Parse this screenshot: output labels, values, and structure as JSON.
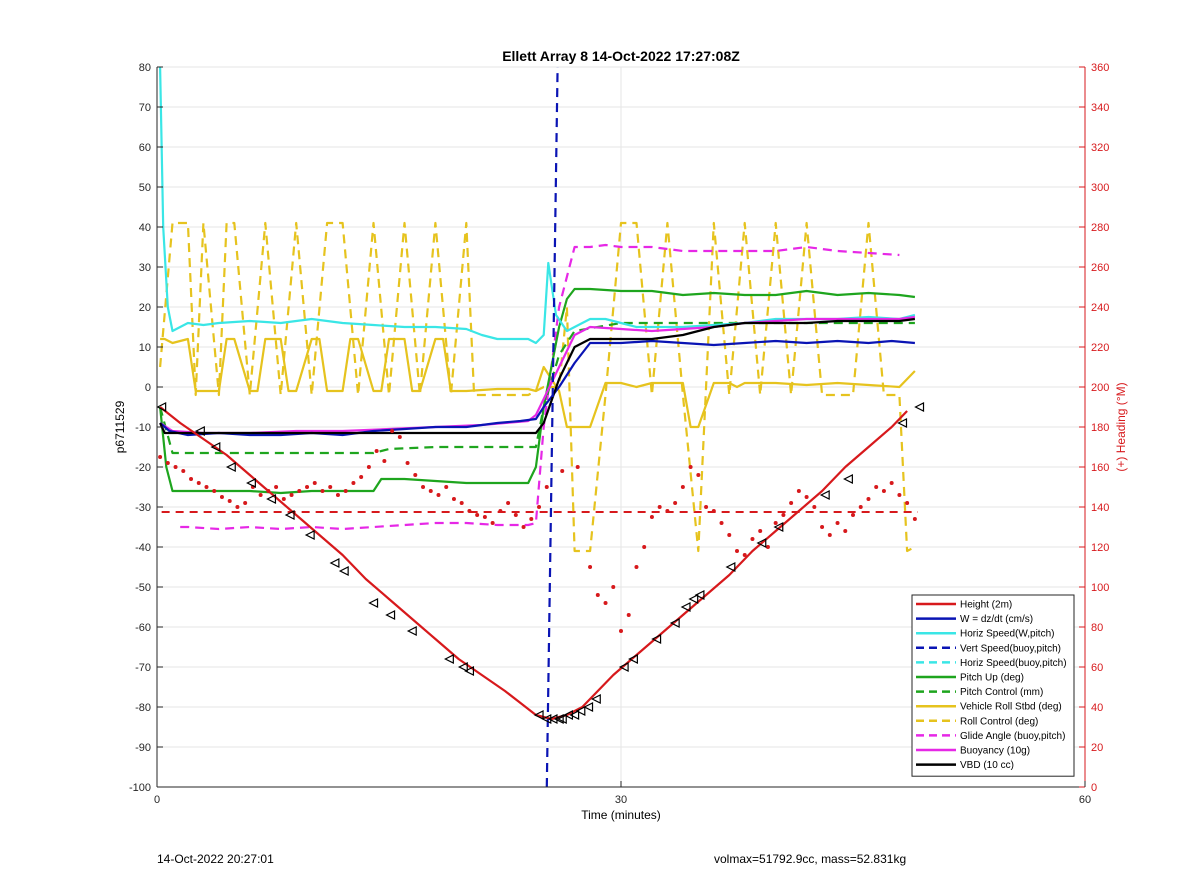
{
  "chart_data": {
    "type": "line",
    "title": "Ellett Array 8 14-Oct-2022 17:27:08Z",
    "xlabel": "Time (minutes)",
    "ylabel": "p6711529",
    "y2label": "(+) Heading (°M)",
    "xlim": [
      0,
      60
    ],
    "ylim": [
      -100,
      80
    ],
    "y2lim": [
      0,
      360
    ],
    "xticks": [
      0,
      30,
      60
    ],
    "yticks": [
      -100,
      -90,
      -80,
      -70,
      -60,
      -50,
      -40,
      -30,
      -20,
      -10,
      0,
      10,
      20,
      30,
      40,
      50,
      60,
      70,
      80
    ],
    "y2ticks": [
      0,
      20,
      40,
      60,
      80,
      100,
      120,
      140,
      160,
      180,
      200,
      220,
      240,
      260,
      280,
      300,
      320,
      340,
      360
    ],
    "grid": true,
    "legend_position": "bottom-right",
    "colors": {
      "red": "#d7191c",
      "blue": "#0a14b4",
      "cyan": "#3ae6e6",
      "green": "#1ea51e",
      "yellow": "#e6c31e",
      "magenta": "#e628e6",
      "black": "#000000",
      "axis_right": "#d7191c"
    },
    "series": [
      {
        "name": "Height (2m)",
        "color": "#d7191c",
        "style": "solid",
        "x": [
          0.2,
          1.5,
          3,
          4.5,
          6,
          7.5,
          9,
          10.5,
          12,
          13.5,
          15,
          16.5,
          18,
          19.5,
          21,
          22.5,
          23.5,
          24.5,
          25.5,
          26.5,
          27.5,
          28.5,
          29.5,
          31,
          32.5,
          34,
          35.5,
          37,
          38.5,
          40,
          41.5,
          43,
          44.5,
          46,
          47.5,
          48.5
        ],
        "y": [
          -5,
          -9,
          -13,
          -17,
          -22,
          -27,
          -32,
          -37,
          -42,
          -48,
          -53,
          -58,
          -63,
          -68,
          -72,
          -76,
          -79,
          -82,
          -83,
          -82,
          -80,
          -76,
          -72,
          -67,
          -62,
          -57,
          -52,
          -47,
          -41,
          -36,
          -31,
          -26,
          -20,
          -15,
          -10,
          -6
        ]
      },
      {
        "name": "W = dz/dt (cm/s)",
        "color": "#0a14b4",
        "style": "solid",
        "x": [
          0.2,
          0.8,
          2,
          4,
          6,
          8,
          10,
          12,
          14,
          16,
          18,
          20,
          22,
          23.5,
          24.5,
          25,
          26,
          27,
          28,
          30,
          32,
          34,
          36,
          38,
          40,
          42,
          44,
          46,
          47.5,
          49
        ],
        "y": [
          -9,
          -11,
          -12,
          -11.5,
          -12,
          -12,
          -11.5,
          -12,
          -11,
          -10.5,
          -10,
          -10,
          -9,
          -8.5,
          -8,
          -5,
          0,
          6,
          11,
          11,
          11.5,
          11,
          10.5,
          11,
          11.5,
          11,
          11.5,
          11,
          11.5,
          11
        ]
      },
      {
        "name": "Horiz Speed(W,pitch)",
        "color": "#3ae6e6",
        "style": "solid",
        "x": [
          0.2,
          0.4,
          0.7,
          1,
          2,
          3,
          4,
          6,
          8,
          10,
          12,
          14,
          16,
          18,
          20,
          21,
          22,
          23,
          24,
          24.5,
          25,
          25.3,
          25.8,
          26.5,
          27,
          28,
          29,
          30,
          31,
          32,
          34,
          36,
          38,
          40,
          42,
          44,
          46,
          48,
          49
        ],
        "y": [
          80,
          40,
          20,
          14,
          16,
          15.5,
          16,
          16.5,
          16,
          17,
          16,
          15.5,
          15,
          15,
          14.5,
          13,
          12,
          12,
          12,
          11,
          13,
          31,
          18,
          14,
          15,
          17,
          17,
          16,
          15,
          15,
          15,
          15.5,
          16,
          17,
          17,
          17,
          17.5,
          17,
          18
        ]
      },
      {
        "name": "Vert Speed(buoy,pitch)",
        "color": "#0a14b4",
        "style": "dashed",
        "x": [
          25.2,
          25.9
        ],
        "y": [
          -100,
          80
        ]
      },
      {
        "name": "Horiz Speed(buoy,pitch)",
        "color": "#3ae6e6",
        "style": "dashed",
        "x": [],
        "y": []
      },
      {
        "name": "Pitch Up (deg)",
        "color": "#1ea51e",
        "style": "solid",
        "x": [
          0.2,
          0.6,
          1,
          2,
          4,
          6,
          8,
          10,
          12,
          14,
          14.5,
          16,
          18,
          20,
          22,
          24,
          24.5,
          25,
          26,
          26.5,
          27,
          28,
          30,
          32,
          34,
          36,
          38,
          40,
          42,
          44,
          46,
          48,
          49
        ],
        "y": [
          -5,
          -20,
          -26,
          -26,
          -26,
          -26,
          -26.5,
          -26,
          -26,
          -26,
          -23,
          -23,
          -23.5,
          -24,
          -24,
          -24,
          -20,
          -5,
          15,
          22,
          24.5,
          24.5,
          24,
          24,
          23,
          23.5,
          23,
          23,
          24,
          23,
          23.5,
          23,
          22.5
        ]
      },
      {
        "name": "Pitch Control (mm)",
        "color": "#1ea51e",
        "style": "dashed",
        "x": [
          0.2,
          1,
          4,
          8,
          12,
          14,
          15,
          18,
          22,
          24.5,
          25,
          26,
          27,
          30,
          34,
          38,
          42,
          46,
          49
        ],
        "y": [
          -5,
          -16.5,
          -16.5,
          -16.5,
          -16.5,
          -16.5,
          -15.5,
          -15,
          -15,
          -15,
          -5,
          8,
          14,
          16,
          16,
          16,
          16,
          16,
          16
        ]
      },
      {
        "name": "Vehicle Roll Stbd (deg)",
        "color": "#e6c31e",
        "style": "solid",
        "x": [
          0.2,
          0.5,
          1,
          2,
          2.5,
          3,
          4,
          4.5,
          5,
          6,
          6.5,
          7,
          8,
          8.5,
          9,
          10,
          10.5,
          11,
          12,
          12.5,
          13,
          14,
          14.5,
          15,
          16,
          16.5,
          17,
          18,
          18.5,
          19,
          20,
          22,
          24,
          24.5,
          25,
          26,
          26.5,
          27,
          28,
          29,
          30,
          31,
          32,
          33,
          34,
          34.5,
          35,
          36,
          37,
          37.5,
          38,
          39,
          40,
          42,
          44,
          46,
          48,
          49
        ],
        "y": [
          12,
          12,
          11,
          12,
          -1,
          -1,
          -1,
          12,
          12,
          -1,
          -1,
          12,
          12,
          -1,
          -1,
          12,
          12,
          -1,
          -1,
          12,
          12,
          -1,
          -1,
          12,
          12,
          -1,
          -1,
          12,
          12,
          -1,
          -1,
          -0.5,
          -0.5,
          -1,
          5,
          -1,
          -10,
          -10,
          -10,
          1,
          1,
          0,
          1,
          1,
          1,
          -10,
          -10,
          1,
          1,
          0,
          1,
          1,
          1,
          0.5,
          1,
          0.5,
          0,
          4
        ]
      },
      {
        "name": "Roll Control (deg)",
        "color": "#e6c31e",
        "style": "dashed",
        "x": [
          0.2,
          1,
          2,
          2.5,
          3,
          4,
          4.5,
          5,
          6,
          7,
          8,
          9,
          10,
          11,
          12,
          13,
          14,
          15,
          16,
          17,
          18,
          19,
          20,
          20.5,
          21,
          22,
          24,
          25,
          26,
          26.5,
          27,
          28,
          29,
          30,
          31,
          32,
          33,
          34,
          35,
          36,
          37,
          38,
          39,
          40,
          41,
          42,
          43,
          44,
          45,
          46,
          47,
          48,
          48.5,
          49
        ],
        "y": [
          5,
          41,
          41,
          -2,
          41,
          -2,
          41,
          41,
          -2,
          41,
          -2,
          41,
          -2,
          41,
          41,
          -2,
          41,
          -2,
          41,
          -2,
          41,
          -2,
          41,
          -2,
          -2,
          -2,
          -2,
          0,
          0,
          20,
          -41,
          -41,
          -2,
          41,
          41,
          -2,
          41,
          -2,
          -41,
          41,
          -2,
          41,
          -2,
          41,
          -2,
          41,
          -2,
          -2,
          -2,
          41,
          -2,
          -2,
          -41,
          -40
        ]
      },
      {
        "name": "Glide Angle (buoy,pitch)",
        "color": "#e628e6",
        "style": "dashed",
        "x": [
          1.5,
          2,
          4,
          6,
          8,
          10,
          12,
          14,
          16,
          18,
          20,
          22,
          24,
          24.5,
          25,
          26,
          27,
          28,
          29,
          30,
          32,
          34,
          36,
          38,
          40,
          42,
          44,
          46,
          48
        ],
        "y": [
          -35,
          -35,
          -35.5,
          -35,
          -35.5,
          -35,
          -35.5,
          -35,
          -34.5,
          -34,
          -34,
          -34.5,
          -34.5,
          -34,
          -10,
          20,
          35,
          35,
          35.5,
          35,
          35,
          34,
          34,
          34,
          34,
          35,
          34,
          33.5,
          33
        ]
      },
      {
        "name": "Buoyancy (10g)",
        "color": "#e628e6",
        "style": "solid",
        "x": [
          0.2,
          1,
          3,
          6,
          9,
          12,
          15,
          18,
          21,
          24,
          24.5,
          25,
          26,
          27,
          28,
          30,
          32,
          34,
          36,
          38,
          40,
          42,
          44,
          46,
          48,
          49
        ],
        "y": [
          -9,
          -11,
          -11.5,
          -11.5,
          -11,
          -11,
          -10.5,
          -10,
          -9.5,
          -8.5,
          -7,
          -3,
          5,
          13,
          15,
          14.5,
          14,
          14.5,
          15,
          16,
          16.5,
          17,
          17,
          17,
          17,
          17.5
        ]
      },
      {
        "name": "VBD (10 cc)",
        "color": "#000000",
        "style": "solid",
        "x": [
          0.2,
          0.5,
          1,
          4,
          8,
          12,
          16,
          20,
          24.5,
          25,
          26,
          27,
          28,
          30,
          32,
          34,
          36,
          38,
          40,
          42,
          44,
          46,
          48,
          49
        ],
        "y": [
          -9,
          -11.5,
          -11.5,
          -11.5,
          -11.5,
          -11.5,
          -11.5,
          -11.5,
          -11.5,
          -9,
          2,
          10,
          12,
          12,
          12,
          13,
          15,
          16,
          16,
          16,
          16.5,
          16.5,
          16.5,
          17
        ]
      }
    ],
    "heading_series": {
      "axis": "right",
      "color": "#d7191c",
      "style": "dots",
      "x": [
        0.2,
        0.7,
        1.2,
        1.7,
        2.2,
        2.7,
        3.2,
        3.7,
        4.2,
        4.7,
        5.2,
        5.7,
        6.2,
        6.7,
        7.2,
        7.7,
        8.2,
        8.7,
        9.2,
        9.7,
        10.2,
        10.7,
        11.2,
        11.7,
        12.2,
        12.7,
        13.2,
        13.7,
        14.2,
        14.7,
        15.2,
        15.7,
        16.2,
        16.7,
        17.2,
        17.7,
        18.2,
        18.7,
        19.2,
        19.7,
        20.2,
        20.7,
        21.2,
        21.7,
        22.2,
        22.7,
        23.2,
        23.7,
        24.2,
        24.7,
        25.2,
        26.2,
        27.2,
        28,
        28.5,
        29,
        29.5,
        30,
        30.5,
        31,
        31.5,
        32,
        32.5,
        33,
        33.5,
        34,
        34.5,
        35,
        35.5,
        36,
        36.5,
        37,
        37.5,
        38,
        38.5,
        39,
        39.5,
        40,
        40.5,
        41,
        41.5,
        42,
        42.5,
        43,
        43.5,
        44,
        44.5,
        45,
        45.5,
        46,
        46.5,
        47,
        47.5,
        48,
        48.5,
        49
      ],
      "y": [
        165,
        162,
        160,
        158,
        154,
        152,
        150,
        148,
        145,
        143,
        140,
        142,
        150,
        146,
        148,
        150,
        144,
        146,
        148,
        150,
        152,
        148,
        150,
        146,
        148,
        152,
        155,
        160,
        168,
        163,
        178,
        175,
        162,
        156,
        150,
        148,
        146,
        150,
        144,
        142,
        138,
        136,
        135,
        132,
        138,
        142,
        136,
        130,
        134,
        140,
        150,
        158,
        160,
        110,
        96,
        92,
        100,
        78,
        86,
        110,
        120,
        135,
        140,
        138,
        142,
        150,
        160,
        156,
        140,
        138,
        132,
        126,
        118,
        116,
        124,
        128,
        120,
        132,
        136,
        142,
        148,
        145,
        140,
        130,
        126,
        132,
        128,
        136,
        140,
        144,
        150,
        148,
        152,
        146,
        142,
        134
      ]
    },
    "height_markers": {
      "shape": "triangle",
      "x": [
        0.3,
        2.8,
        3.8,
        4.8,
        6.1,
        7.4,
        8.6,
        9.9,
        11.5,
        12.1,
        14,
        15.1,
        16.5,
        18.9,
        19.8,
        20.2,
        24.7,
        25.2,
        25.6,
        26,
        26.2,
        26.6,
        27,
        27.4,
        27.9,
        28.4,
        30.2,
        30.8,
        32.3,
        33.5,
        34.2,
        34.7,
        35.1,
        37.1,
        39.1,
        40.2,
        43.2,
        44.7,
        48.2,
        49.3
      ],
      "y": [
        -5,
        -11,
        -15,
        -20,
        -24,
        -28,
        -32,
        -37,
        -44,
        -46,
        -54,
        -57,
        -61,
        -68,
        -70,
        -71,
        -82,
        -83,
        -83,
        -83,
        -83,
        -82,
        -82,
        -81,
        -80,
        -78,
        -70,
        -68,
        -63,
        -59,
        -55,
        -53,
        -52,
        -45,
        -39,
        -35,
        -27,
        -23,
        -9,
        -5
      ]
    },
    "reference_lines": [
      {
        "axis": "right",
        "value": 137.5,
        "color": "#d7191c",
        "style": "dashed"
      }
    ]
  },
  "footer": {
    "timestamp": "14-Oct-2022 20:27:01",
    "info": "volmax=51792.9cc, mass=52.831kg"
  }
}
